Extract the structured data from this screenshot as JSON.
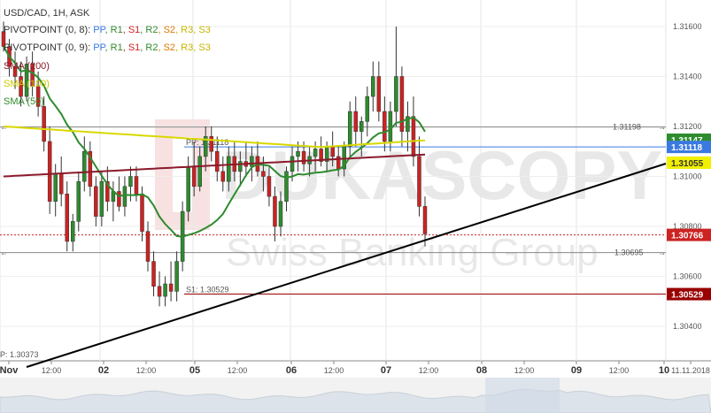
{
  "header": {
    "symbol_line": "USD/CAD, 1H, ASK"
  },
  "legend": {
    "pivot1_prefix": "PIVOTPOINT (0, 8):",
    "pivot2_prefix": "PIVOTPOINT (0, 9):",
    "pivot_keys": [
      "PP",
      "R1",
      "S1",
      "R2",
      "S2",
      "R3",
      "S3"
    ],
    "pivot_colors": [
      "#3a7ae0",
      "#2e8b2e",
      "#cc2222",
      "#2e8b2e",
      "#dd7700",
      "#c8b400",
      "#c8b400"
    ],
    "sma200": "SMA (200)",
    "sma100": "SMA (100)",
    "sma50": "SMA (50)",
    "sma200_color": "#8b1a2b",
    "sma100_color": "#d8d800",
    "sma50_color": "#2e8b2e"
  },
  "watermark": {
    "brand": "DUKASCOPY",
    "tagline": "Swiss Banking Group"
  },
  "chart_data": {
    "type": "candlestick",
    "y_ticks": [
      "1.31600",
      "1.31400",
      "1.31200",
      "1.31000",
      "1.30800",
      "1.30600",
      "1.30400"
    ],
    "x_ticks": [
      "Nov",
      "12:00",
      "02",
      "12:00",
      "05",
      "12:00",
      "06",
      "12:00",
      "07",
      "12:00",
      "08",
      "12:00",
      "09",
      "12:00",
      "10",
      "11.11.2018"
    ],
    "levels": {
      "res_1": "1.31198",
      "pp_label": "PP: 1.31118",
      "pp_value": "1.31118",
      "sma50_value": "1.31147",
      "sma100_value": "1.31055",
      "current": "1.30766",
      "support_1": "1.30695",
      "s1_label": "S1: 1.30529",
      "s1_value": "1.30529",
      "p_low_label": "P: 1.30373"
    },
    "colors": {
      "up": "#2e8b2e",
      "down": "#cc2222",
      "pp": "#3a7ae0",
      "s1": "#990000",
      "trend": "#000000"
    },
    "candles": [
      [
        1.3158,
        1.3162,
        1.315,
        1.3152
      ],
      [
        1.3152,
        1.3155,
        1.314,
        1.3144
      ],
      [
        1.3144,
        1.315,
        1.3135,
        1.314
      ],
      [
        1.314,
        1.3146,
        1.3128,
        1.3132
      ],
      [
        1.3132,
        1.3148,
        1.313,
        1.3145
      ],
      [
        1.3145,
        1.315,
        1.3132,
        1.3136
      ],
      [
        1.3136,
        1.3142,
        1.3124,
        1.3128
      ],
      [
        1.3128,
        1.3132,
        1.311,
        1.3114
      ],
      [
        1.3114,
        1.312,
        1.3085,
        1.309
      ],
      [
        1.309,
        1.3105,
        1.3084,
        1.3101
      ],
      [
        1.3101,
        1.3108,
        1.3088,
        1.3093
      ],
      [
        1.3093,
        1.3098,
        1.307,
        1.3074
      ],
      [
        1.3074,
        1.3085,
        1.307,
        1.3082
      ],
      [
        1.3082,
        1.3102,
        1.3078,
        1.3098
      ],
      [
        1.3098,
        1.3116,
        1.3094,
        1.311
      ],
      [
        1.311,
        1.3114,
        1.3092,
        1.3096
      ],
      [
        1.3096,
        1.31,
        1.308,
        1.3084
      ],
      [
        1.3084,
        1.3102,
        1.308,
        1.3098
      ],
      [
        1.3098,
        1.3104,
        1.3086,
        1.309
      ],
      [
        1.309,
        1.3098,
        1.3082,
        1.3094
      ],
      [
        1.3094,
        1.31,
        1.3086,
        1.3088
      ],
      [
        1.3088,
        1.31,
        1.3084,
        1.3096
      ],
      [
        1.3096,
        1.3104,
        1.309,
        1.31
      ],
      [
        1.31,
        1.3104,
        1.309,
        1.3093
      ],
      [
        1.3093,
        1.3096,
        1.3074,
        1.3078
      ],
      [
        1.3078,
        1.3082,
        1.3062,
        1.3066
      ],
      [
        1.3066,
        1.307,
        1.3052,
        1.3056
      ],
      [
        1.3056,
        1.3062,
        1.3048,
        1.3052
      ],
      [
        1.3052,
        1.306,
        1.3048,
        1.3057
      ],
      [
        1.3057,
        1.3066,
        1.305,
        1.3054
      ],
      [
        1.3054,
        1.307,
        1.305,
        1.3066
      ],
      [
        1.3066,
        1.309,
        1.3062,
        1.3086
      ],
      [
        1.3086,
        1.3108,
        1.3082,
        1.3104
      ],
      [
        1.3104,
        1.3114,
        1.3092,
        1.3096
      ],
      [
        1.3096,
        1.3112,
        1.3094,
        1.3108
      ],
      [
        1.3108,
        1.312,
        1.3102,
        1.3116
      ],
      [
        1.3116,
        1.312,
        1.3106,
        1.311
      ],
      [
        1.311,
        1.3116,
        1.3098,
        1.3102
      ],
      [
        1.3102,
        1.3108,
        1.3094,
        1.3098
      ],
      [
        1.3098,
        1.3112,
        1.3094,
        1.3108
      ],
      [
        1.3108,
        1.3114,
        1.3098,
        1.3102
      ],
      [
        1.3102,
        1.311,
        1.3096,
        1.3106
      ],
      [
        1.3106,
        1.3114,
        1.31,
        1.3104
      ],
      [
        1.3104,
        1.3112,
        1.3098,
        1.3108
      ],
      [
        1.3108,
        1.3114,
        1.31,
        1.3102
      ],
      [
        1.3102,
        1.3108,
        1.3094,
        1.31
      ],
      [
        1.31,
        1.3104,
        1.3088,
        1.3092
      ],
      [
        1.3092,
        1.3096,
        1.3074,
        1.308
      ],
      [
        1.308,
        1.3094,
        1.3076,
        1.309
      ],
      [
        1.309,
        1.3104,
        1.3086,
        1.3102
      ],
      [
        1.3102,
        1.3112,
        1.3098,
        1.3108
      ],
      [
        1.3108,
        1.3114,
        1.3102,
        1.311
      ],
      [
        1.311,
        1.3114,
        1.3102,
        1.3105
      ],
      [
        1.3105,
        1.3112,
        1.31,
        1.3108
      ],
      [
        1.3108,
        1.3114,
        1.3102,
        1.3111
      ],
      [
        1.3111,
        1.3116,
        1.3104,
        1.3106
      ],
      [
        1.3106,
        1.3114,
        1.3102,
        1.3112
      ],
      [
        1.3112,
        1.3118,
        1.3104,
        1.3108
      ],
      [
        1.3108,
        1.3112,
        1.31,
        1.3103
      ],
      [
        1.3103,
        1.3114,
        1.31,
        1.3112
      ],
      [
        1.3112,
        1.313,
        1.3108,
        1.3126
      ],
      [
        1.3126,
        1.3132,
        1.3112,
        1.3118
      ],
      [
        1.3118,
        1.3124,
        1.3108,
        1.3122
      ],
      [
        1.3122,
        1.3136,
        1.3116,
        1.3132
      ],
      [
        1.3132,
        1.3146,
        1.3126,
        1.314
      ],
      [
        1.314,
        1.3146,
        1.3122,
        1.3126
      ],
      [
        1.3126,
        1.3132,
        1.311,
        1.3114
      ],
      [
        1.3114,
        1.313,
        1.311,
        1.3126
      ],
      [
        1.3126,
        1.316,
        1.312,
        1.314
      ],
      [
        1.314,
        1.3144,
        1.3112,
        1.3118
      ],
      [
        1.3118,
        1.313,
        1.311,
        1.3124
      ],
      [
        1.3124,
        1.3132,
        1.3104,
        1.3108
      ],
      [
        1.3108,
        1.3116,
        1.3084,
        1.3088
      ],
      [
        1.3088,
        1.3092,
        1.3072,
        1.3077
      ]
    ]
  }
}
